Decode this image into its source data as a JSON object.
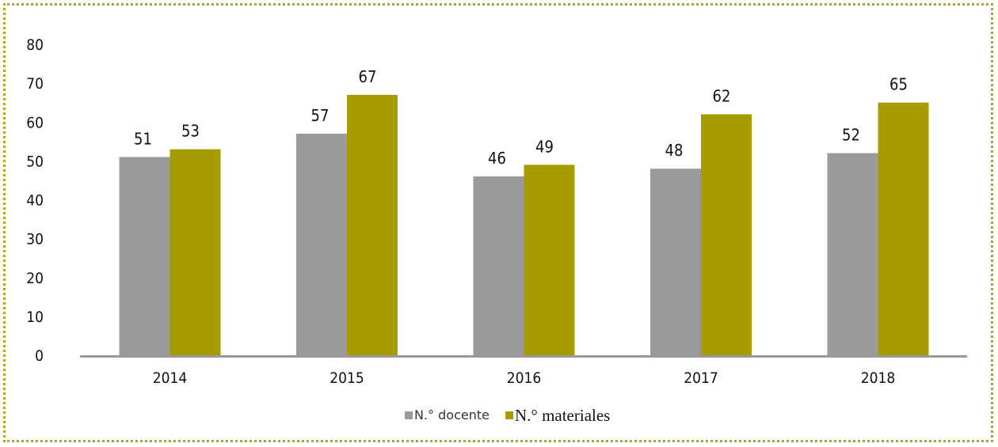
{
  "chart_data": {
    "type": "bar",
    "categories": [
      "2014",
      "2015",
      "2016",
      "2017",
      "2018"
    ],
    "series": [
      {
        "name": "N.° docente",
        "values": [
          51,
          57,
          46,
          48,
          52
        ],
        "color": "#9a9a9a"
      },
      {
        "name": "N.° materiales",
        "values": [
          53,
          67,
          49,
          62,
          65
        ],
        "color": "#a69b00"
      }
    ],
    "ylim": [
      0,
      80
    ],
    "yticks": [
      0,
      10,
      20,
      30,
      40,
      50,
      60,
      70,
      80
    ],
    "title": "",
    "xlabel": "",
    "ylabel": "",
    "grid": false,
    "legend_position": "bottom",
    "frame_color": "#b5a319",
    "axis_color": "#999999"
  }
}
